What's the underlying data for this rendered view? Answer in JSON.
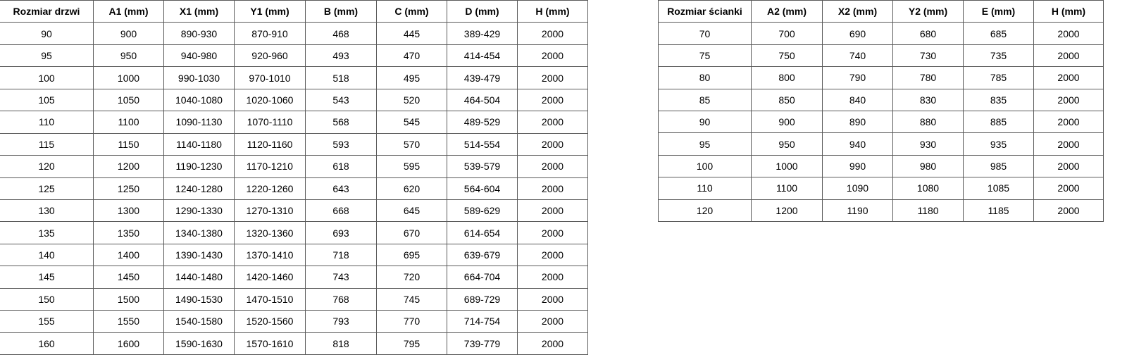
{
  "doors_table": {
    "headers": [
      "Rozmiar drzwi",
      "A1 (mm)",
      "X1 (mm)",
      "Y1 (mm)",
      "B (mm)",
      "C (mm)",
      "D (mm)",
      "H (mm)"
    ],
    "rows": [
      [
        "90",
        "900",
        "890-930",
        "870-910",
        "468",
        "445",
        "389-429",
        "2000"
      ],
      [
        "95",
        "950",
        "940-980",
        "920-960",
        "493",
        "470",
        "414-454",
        "2000"
      ],
      [
        "100",
        "1000",
        "990-1030",
        "970-1010",
        "518",
        "495",
        "439-479",
        "2000"
      ],
      [
        "105",
        "1050",
        "1040-1080",
        "1020-1060",
        "543",
        "520",
        "464-504",
        "2000"
      ],
      [
        "110",
        "1100",
        "1090-1130",
        "1070-1110",
        "568",
        "545",
        "489-529",
        "2000"
      ],
      [
        "115",
        "1150",
        "1140-1180",
        "1120-1160",
        "593",
        "570",
        "514-554",
        "2000"
      ],
      [
        "120",
        "1200",
        "1190-1230",
        "1170-1210",
        "618",
        "595",
        "539-579",
        "2000"
      ],
      [
        "125",
        "1250",
        "1240-1280",
        "1220-1260",
        "643",
        "620",
        "564-604",
        "2000"
      ],
      [
        "130",
        "1300",
        "1290-1330",
        "1270-1310",
        "668",
        "645",
        "589-629",
        "2000"
      ],
      [
        "135",
        "1350",
        "1340-1380",
        "1320-1360",
        "693",
        "670",
        "614-654",
        "2000"
      ],
      [
        "140",
        "1400",
        "1390-1430",
        "1370-1410",
        "718",
        "695",
        "639-679",
        "2000"
      ],
      [
        "145",
        "1450",
        "1440-1480",
        "1420-1460",
        "743",
        "720",
        "664-704",
        "2000"
      ],
      [
        "150",
        "1500",
        "1490-1530",
        "1470-1510",
        "768",
        "745",
        "689-729",
        "2000"
      ],
      [
        "155",
        "1550",
        "1540-1580",
        "1520-1560",
        "793",
        "770",
        "714-754",
        "2000"
      ],
      [
        "160",
        "1600",
        "1590-1630",
        "1570-1610",
        "818",
        "795",
        "739-779",
        "2000"
      ]
    ]
  },
  "wall_table": {
    "headers": [
      "Rozmiar ścianki",
      "A2 (mm)",
      "X2 (mm)",
      "Y2 (mm)",
      "E (mm)",
      "H (mm)"
    ],
    "rows": [
      [
        "70",
        "700",
        "690",
        "680",
        "685",
        "2000"
      ],
      [
        "75",
        "750",
        "740",
        "730",
        "735",
        "2000"
      ],
      [
        "80",
        "800",
        "790",
        "780",
        "785",
        "2000"
      ],
      [
        "85",
        "850",
        "840",
        "830",
        "835",
        "2000"
      ],
      [
        "90",
        "900",
        "890",
        "880",
        "885",
        "2000"
      ],
      [
        "95",
        "950",
        "940",
        "930",
        "935",
        "2000"
      ],
      [
        "100",
        "1000",
        "990",
        "980",
        "985",
        "2000"
      ],
      [
        "110",
        "1100",
        "1090",
        "1080",
        "1085",
        "2000"
      ],
      [
        "120",
        "1200",
        "1190",
        "1180",
        "1185",
        "2000"
      ]
    ]
  }
}
